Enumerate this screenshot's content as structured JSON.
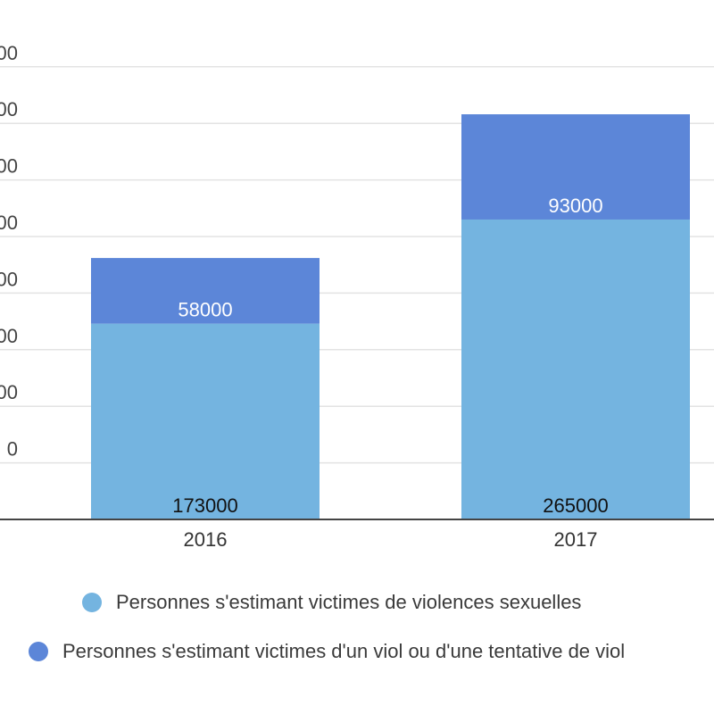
{
  "chart_data": {
    "type": "bar",
    "stacked": true,
    "categories": [
      "2016",
      "2017"
    ],
    "series": [
      {
        "name": "Personnes s'estimant victimes de violences sexuelles",
        "values": [
          173000,
          265000
        ],
        "color": "#74b4e0"
      },
      {
        "name": "Personnes s'estimant victimes d'un viol ou d'une tentative de viol",
        "values": [
          58000,
          93000
        ],
        "color": "#5c86d8"
      }
    ],
    "y_tick_labels": [
      "0",
      "00",
      "00",
      "00",
      "00",
      "00",
      "00",
      "00"
    ],
    "ylim": [
      0,
      400000
    ],
    "grid": true,
    "legend_position": "bottom"
  }
}
